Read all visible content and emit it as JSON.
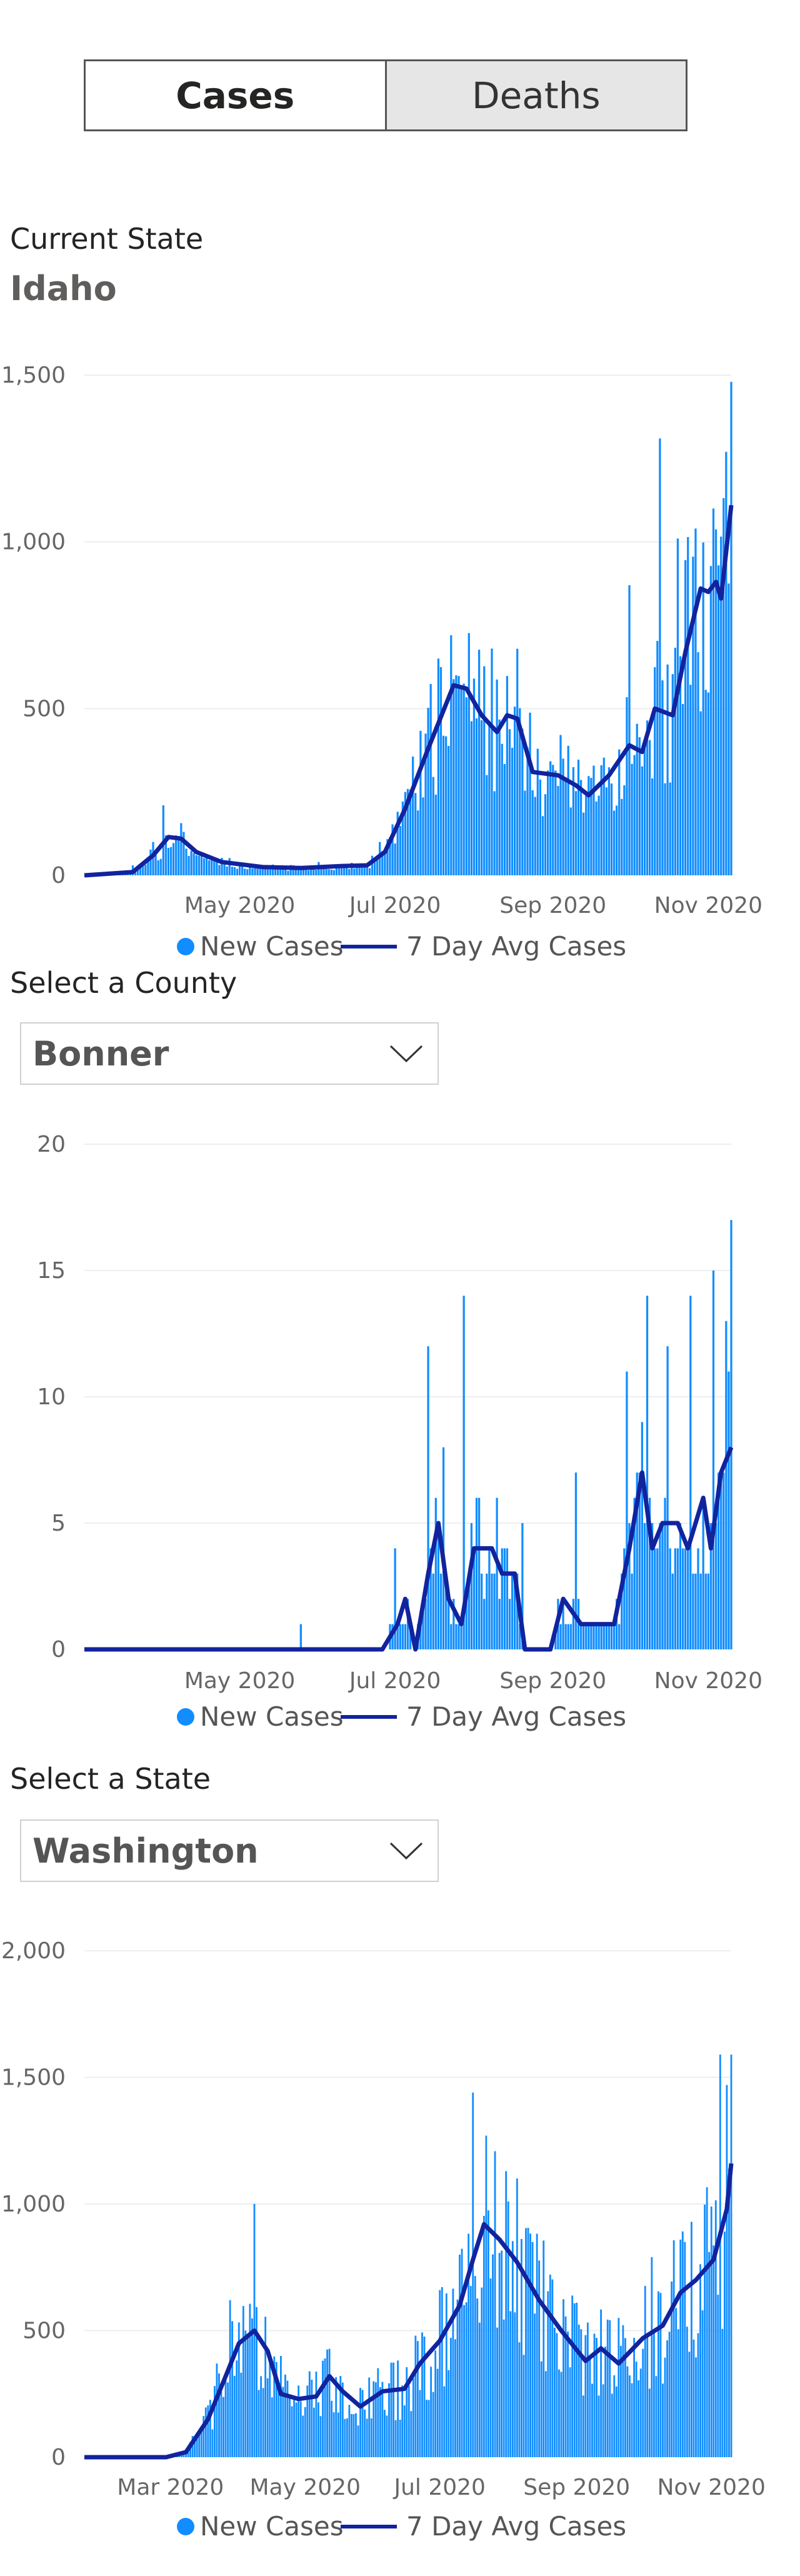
{
  "toggle": {
    "cases_label": "Cases",
    "deaths_label": "Deaths",
    "active": "cases"
  },
  "state_section": {
    "label": "Current State",
    "value": "Idaho"
  },
  "county_section": {
    "label": "Select a County",
    "value": "Bonner"
  },
  "state_select_section": {
    "label": "Select a State",
    "value": "Washington"
  },
  "colors": {
    "bars": "#118dff",
    "avg_line": "#12239e",
    "grid": "#eeeeee",
    "axis_text": "#666666"
  },
  "chart_data": [
    {
      "type": "bar",
      "id": "idaho",
      "series": [
        {
          "name": "New Cases",
          "type": "bar"
        },
        {
          "name": "7 Day Avg Cases",
          "type": "line"
        }
      ],
      "x_range": [
        "2020-03-01",
        "2020-11-10"
      ],
      "x_ticks": [
        "May 2020",
        "Jul 2020",
        "Sep 2020",
        "Nov 2020"
      ],
      "x_tick_dates": [
        "2020-05-01",
        "2020-07-01",
        "2020-09-01",
        "2020-11-01"
      ],
      "y_ticks": [
        "0",
        "500",
        "1,000",
        "1,500"
      ],
      "ylim": [
        0,
        1500
      ],
      "gridlines": true,
      "legend_position": "bottom",
      "avg_line_points": [
        [
          "2020-03-01",
          0
        ],
        [
          "2020-03-20",
          10
        ],
        [
          "2020-03-28",
          60
        ],
        [
          "2020-04-03",
          115
        ],
        [
          "2020-04-08",
          110
        ],
        [
          "2020-04-14",
          70
        ],
        [
          "2020-04-24",
          40
        ],
        [
          "2020-05-10",
          25
        ],
        [
          "2020-05-25",
          22
        ],
        [
          "2020-06-10",
          28
        ],
        [
          "2020-06-20",
          30
        ],
        [
          "2020-06-27",
          70
        ],
        [
          "2020-07-05",
          200
        ],
        [
          "2020-07-14",
          380
        ],
        [
          "2020-07-24",
          570
        ],
        [
          "2020-07-29",
          560
        ],
        [
          "2020-08-04",
          480
        ],
        [
          "2020-08-10",
          430
        ],
        [
          "2020-08-14",
          480
        ],
        [
          "2020-08-18",
          470
        ],
        [
          "2020-08-24",
          310
        ],
        [
          "2020-09-03",
          300
        ],
        [
          "2020-09-10",
          270
        ],
        [
          "2020-09-15",
          240
        ],
        [
          "2020-09-23",
          300
        ],
        [
          "2020-10-01",
          390
        ],
        [
          "2020-10-06",
          370
        ],
        [
          "2020-10-11",
          500
        ],
        [
          "2020-10-18",
          480
        ],
        [
          "2020-10-23",
          670
        ],
        [
          "2020-10-29",
          860
        ],
        [
          "2020-11-01",
          850
        ],
        [
          "2020-11-04",
          880
        ],
        [
          "2020-11-06",
          830
        ],
        [
          "2020-11-10",
          1110
        ]
      ],
      "bar_peaks": [
        [
          "2020-03-20",
          30
        ],
        [
          "2020-03-28",
          100
        ],
        [
          "2020-04-01",
          210
        ],
        [
          "2020-04-10",
          80
        ],
        [
          "2020-05-01",
          35
        ],
        [
          "2020-06-01",
          40
        ],
        [
          "2020-06-25",
          100
        ],
        [
          "2020-07-05",
          250
        ],
        [
          "2020-07-18",
          650
        ],
        [
          "2020-07-23",
          720
        ],
        [
          "2020-08-01",
          590
        ],
        [
          "2020-08-08",
          680
        ],
        [
          "2020-08-20",
          440
        ],
        [
          "2020-09-05",
          350
        ],
        [
          "2020-09-20",
          330
        ],
        [
          "2020-10-01",
          870
        ],
        [
          "2020-10-13",
          1310
        ],
        [
          "2020-10-20",
          1010
        ],
        [
          "2020-10-27",
          1040
        ],
        [
          "2020-11-03",
          1100
        ],
        [
          "2020-11-08",
          1270
        ],
        [
          "2020-11-10",
          1480
        ]
      ]
    },
    {
      "type": "bar",
      "id": "bonner",
      "series": [
        {
          "name": "New Cases",
          "type": "bar"
        },
        {
          "name": "7 Day Avg Cases",
          "type": "line"
        }
      ],
      "x_range": [
        "2020-03-01",
        "2020-11-10"
      ],
      "x_ticks": [
        "May 2020",
        "Jul 2020",
        "Sep 2020",
        "Nov 2020"
      ],
      "x_tick_dates": [
        "2020-05-01",
        "2020-07-01",
        "2020-09-01",
        "2020-11-01"
      ],
      "y_ticks": [
        "0",
        "5",
        "10",
        "15",
        "20"
      ],
      "ylim": [
        0,
        20
      ],
      "gridlines": true,
      "legend_position": "bottom",
      "avg_line_points": [
        [
          "2020-03-01",
          0
        ],
        [
          "2020-06-26",
          0
        ],
        [
          "2020-07-02",
          1
        ],
        [
          "2020-07-05",
          2
        ],
        [
          "2020-07-09",
          0
        ],
        [
          "2020-07-14",
          3
        ],
        [
          "2020-07-18",
          5
        ],
        [
          "2020-07-22",
          2
        ],
        [
          "2020-07-27",
          1
        ],
        [
          "2020-08-01",
          4
        ],
        [
          "2020-08-08",
          4
        ],
        [
          "2020-08-12",
          3
        ],
        [
          "2020-08-17",
          3
        ],
        [
          "2020-08-21",
          0
        ],
        [
          "2020-08-26",
          0
        ],
        [
          "2020-08-31",
          0
        ],
        [
          "2020-09-05",
          2
        ],
        [
          "2020-09-12",
          1
        ],
        [
          "2020-09-25",
          1
        ],
        [
          "2020-10-01",
          4
        ],
        [
          "2020-10-06",
          7
        ],
        [
          "2020-10-10",
          4
        ],
        [
          "2020-10-14",
          5
        ],
        [
          "2020-10-20",
          5
        ],
        [
          "2020-10-24",
          4
        ],
        [
          "2020-10-30",
          6
        ],
        [
          "2020-11-02",
          4
        ],
        [
          "2020-11-06",
          7
        ],
        [
          "2020-11-10",
          8
        ]
      ],
      "bar_peaks": [
        [
          "2020-05-25",
          1
        ],
        [
          "2020-07-01",
          4
        ],
        [
          "2020-07-14",
          12
        ],
        [
          "2020-07-20",
          8
        ],
        [
          "2020-07-28",
          14
        ],
        [
          "2020-08-10",
          6
        ],
        [
          "2020-08-20",
          5
        ],
        [
          "2020-09-10",
          7
        ],
        [
          "2020-09-30",
          11
        ],
        [
          "2020-10-08",
          14
        ],
        [
          "2020-10-16",
          12
        ],
        [
          "2020-10-25",
          14
        ],
        [
          "2020-11-03",
          15
        ],
        [
          "2020-11-08",
          13
        ],
        [
          "2020-11-10",
          17
        ]
      ]
    },
    {
      "type": "bar",
      "id": "washington",
      "series": [
        {
          "name": "New Cases",
          "type": "bar"
        },
        {
          "name": "7 Day Avg Cases",
          "type": "line"
        }
      ],
      "x_range": [
        "2020-01-22",
        "2020-11-10"
      ],
      "x_ticks": [
        "Mar 2020",
        "May 2020",
        "Jul 2020",
        "Sep 2020",
        "Nov 2020"
      ],
      "x_tick_dates": [
        "2020-03-01",
        "2020-05-01",
        "2020-07-01",
        "2020-09-01",
        "2020-11-01"
      ],
      "y_ticks": [
        "0",
        "500",
        "1,000",
        "1,500",
        "2,000"
      ],
      "ylim": [
        0,
        2000
      ],
      "gridlines": true,
      "legend_position": "bottom",
      "avg_line_points": [
        [
          "2020-01-22",
          0
        ],
        [
          "2020-02-28",
          0
        ],
        [
          "2020-03-08",
          20
        ],
        [
          "2020-03-18",
          150
        ],
        [
          "2020-03-26",
          320
        ],
        [
          "2020-04-01",
          450
        ],
        [
          "2020-04-08",
          500
        ],
        [
          "2020-04-14",
          420
        ],
        [
          "2020-04-20",
          250
        ],
        [
          "2020-04-28",
          230
        ],
        [
          "2020-05-06",
          240
        ],
        [
          "2020-05-12",
          320
        ],
        [
          "2020-05-18",
          260
        ],
        [
          "2020-05-26",
          200
        ],
        [
          "2020-06-05",
          260
        ],
        [
          "2020-06-15",
          270
        ],
        [
          "2020-06-22",
          370
        ],
        [
          "2020-07-01",
          460
        ],
        [
          "2020-07-10",
          600
        ],
        [
          "2020-07-16",
          780
        ],
        [
          "2020-07-21",
          920
        ],
        [
          "2020-07-28",
          860
        ],
        [
          "2020-08-05",
          770
        ],
        [
          "2020-08-15",
          620
        ],
        [
          "2020-08-25",
          500
        ],
        [
          "2020-09-05",
          380
        ],
        [
          "2020-09-12",
          430
        ],
        [
          "2020-09-20",
          370
        ],
        [
          "2020-10-01",
          470
        ],
        [
          "2020-10-10",
          520
        ],
        [
          "2020-10-18",
          650
        ],
        [
          "2020-10-25",
          700
        ],
        [
          "2020-11-02",
          780
        ],
        [
          "2020-11-08",
          980
        ],
        [
          "2020-11-10",
          1160
        ]
      ],
      "bar_peaks": [
        [
          "2020-03-10",
          60
        ],
        [
          "2020-03-22",
          370
        ],
        [
          "2020-03-28",
          620
        ],
        [
          "2020-04-04",
          500
        ],
        [
          "2020-04-08",
          1000
        ],
        [
          "2020-04-20",
          400
        ],
        [
          "2020-05-10",
          390
        ],
        [
          "2020-06-01",
          300
        ],
        [
          "2020-06-20",
          480
        ],
        [
          "2020-07-01",
          660
        ],
        [
          "2020-07-10",
          800
        ],
        [
          "2020-07-16",
          1440
        ],
        [
          "2020-07-22",
          1270
        ],
        [
          "2020-08-01",
          1010
        ],
        [
          "2020-08-12",
          850
        ],
        [
          "2020-09-01",
          610
        ],
        [
          "2020-09-20",
          550
        ],
        [
          "2020-10-05",
          790
        ],
        [
          "2020-10-20",
          850
        ],
        [
          "2020-11-01",
          990
        ],
        [
          "2020-11-05",
          1590
        ],
        [
          "2020-11-08",
          1470
        ],
        [
          "2020-11-10",
          1590
        ]
      ]
    }
  ]
}
